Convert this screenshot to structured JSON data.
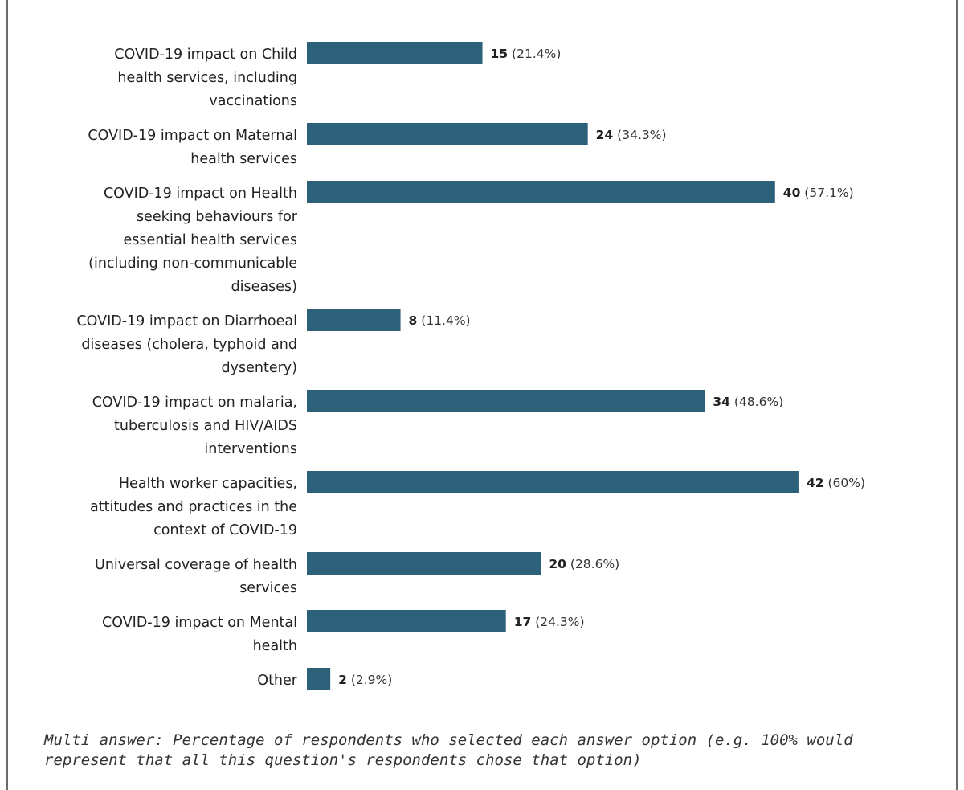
{
  "chart_data": {
    "type": "bar",
    "orientation": "horizontal",
    "categories": [
      [
        "COVID-19 impact on Child",
        "health services, including",
        "vaccinations"
      ],
      [
        "COVID-19 impact on Maternal",
        "health services"
      ],
      [
        "COVID-19 impact on Health",
        "seeking behaviours for",
        "essential health services",
        "(including non-communicable",
        "diseases)"
      ],
      [
        "COVID-19 impact on Diarrhoeal",
        "diseases (cholera, typhoid and",
        "dysentery)"
      ],
      [
        "COVID-19 impact on malaria,",
        "tuberculosis and HIV/AIDS",
        "interventions"
      ],
      [
        "Health worker capacities,",
        "attitudes and practices in the",
        "context of COVID-19"
      ],
      [
        "Universal coverage of health",
        "services"
      ],
      [
        "COVID-19 impact on Mental",
        "health"
      ],
      [
        "Other"
      ]
    ],
    "values": [
      15,
      24,
      40,
      8,
      34,
      42,
      20,
      17,
      2
    ],
    "percent_labels": [
      "(21.4%)",
      "(34.3%)",
      "(57.1%)",
      "(11.4%)",
      "(48.6%)",
      "(60%)",
      "(28.6%)",
      "(24.3%)",
      "(2.9%)"
    ],
    "bar_color": "#2d6079",
    "grid": false,
    "legend": "none"
  },
  "footnote": "Multi answer: Percentage of respondents who selected each answer option (e.g. 100% would represent that all this question's respondents chose that option)"
}
